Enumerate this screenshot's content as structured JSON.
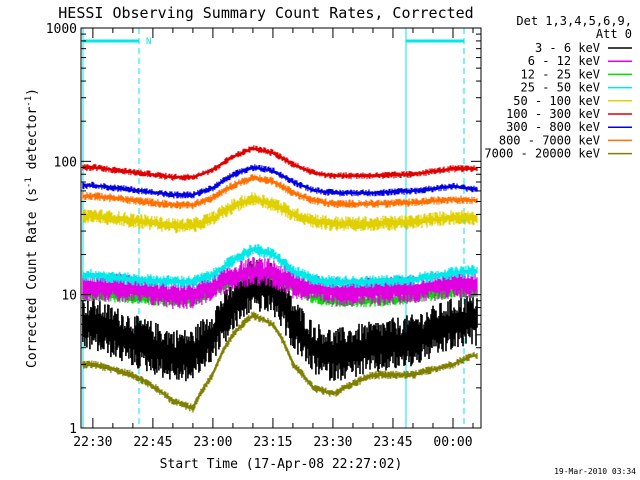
{
  "chart_data": {
    "type": "line",
    "title": "HESSI Observing Summary Count Rates, Corrected",
    "xlabel": "Start Time (17-Apr-08 22:27:02)",
    "ylabel": "Corrected Count Rate (s^-1 detector^-1)",
    "y_scale": "log",
    "ylim": [
      1,
      1000
    ],
    "xlim": [
      "22:27:02",
      "00:07:00"
    ],
    "y_tick_labels": [
      "1",
      "10",
      "100",
      "1000"
    ],
    "x_tick_labels": [
      "22:30",
      "22:45",
      "23:00",
      "23:15",
      "23:30",
      "23:45",
      "00:00"
    ],
    "legend": {
      "header_line1": "Det 1,3,4,5,6,9,",
      "header_line2": "Att 0",
      "position": "top-right outside plot"
    },
    "x_minutes_after_22_00": [
      30,
      40,
      50,
      55,
      60,
      65,
      70,
      75,
      80,
      85,
      90,
      100,
      110,
      120,
      125
    ],
    "series": [
      {
        "name": "3 - 6 keV",
        "color": "#000000",
        "values": [
          6,
          4.5,
          3.5,
          3.5,
          5,
          8,
          12,
          11,
          6,
          4,
          3.5,
          4,
          4.5,
          6,
          6.5
        ]
      },
      {
        "name": "6 - 12 keV",
        "color": "#e000e0",
        "values": [
          11.5,
          11,
          10,
          10,
          11.5,
          13.5,
          15,
          14.5,
          12,
          11,
          10.5,
          10.5,
          11,
          12,
          12
        ]
      },
      {
        "name": "12 - 25 keV",
        "color": "#00e000",
        "values": [
          10,
          9.5,
          9,
          9,
          10.5,
          13,
          15,
          14,
          11,
          9.5,
          9,
          9,
          9.5,
          10.5,
          10.5
        ]
      },
      {
        "name": "25 - 50 keV",
        "color": "#00e8e8",
        "values": [
          14,
          13,
          12.5,
          12.5,
          14,
          18,
          22,
          20,
          15,
          13,
          12.5,
          12.5,
          13,
          14.5,
          15
        ]
      },
      {
        "name": "50 - 100 keV",
        "color": "#e0d000",
        "values": [
          39,
          36,
          33,
          33,
          37,
          46,
          52,
          48,
          40,
          36,
          34,
          34,
          35,
          38,
          38
        ]
      },
      {
        "name": "100 - 300 keV",
        "color": "#e00000",
        "values": [
          90,
          83,
          76,
          76,
          86,
          108,
          125,
          116,
          95,
          82,
          78,
          78,
          80,
          88,
          88
        ]
      },
      {
        "name": "300 - 800 keV",
        "color": "#0000e0",
        "values": [
          66,
          61,
          56,
          56,
          63,
          79,
          90,
          85,
          70,
          61,
          58,
          58,
          60,
          65,
          62
        ]
      },
      {
        "name": "800 - 7000 keV",
        "color": "#ff7000",
        "values": [
          55,
          51,
          47,
          47,
          53,
          66,
          75,
          71,
          58,
          51,
          48,
          48,
          49,
          52,
          51
        ]
      },
      {
        "name": "7000 - 20000 keV",
        "color": "#808000",
        "values": [
          3,
          2.5,
          1.6,
          1.4,
          2.5,
          5,
          7,
          6,
          3,
          2,
          1.8,
          2.5,
          2.5,
          3,
          3.5
        ]
      }
    ],
    "annotations": {
      "top_marker_label": "N"
    },
    "timestamp": "19-Mar-2010 03:34"
  }
}
